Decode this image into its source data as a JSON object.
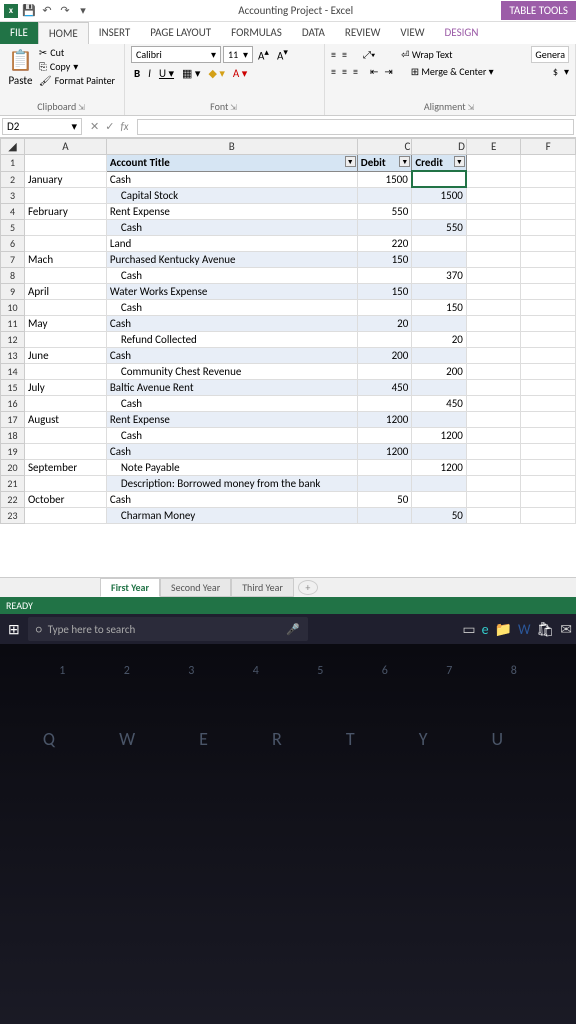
{
  "title": "Accounting Project - Excel",
  "table_tools": "TABLE TOOLS",
  "tabs": {
    "file": "FILE",
    "home": "HOME",
    "insert": "INSERT",
    "pagelayout": "PAGE LAYOUT",
    "formulas": "FORMULAS",
    "data": "DATA",
    "review": "REVIEW",
    "view": "VIEW",
    "design": "DESIGN"
  },
  "clipboard": {
    "paste": "Paste",
    "cut": "Cut",
    "copy": "Copy",
    "format_painter": "Format Painter",
    "label": "Clipboard"
  },
  "font": {
    "name": "Calibri",
    "size": "11",
    "label": "Font"
  },
  "alignment": {
    "wrap": "Wrap Text",
    "merge": "Merge & Center",
    "genera": "Genera",
    "dollar": "$",
    "label": "Alignment"
  },
  "namebox": "D2",
  "fx": "",
  "columns": [
    "A",
    "B",
    "C",
    "D",
    "E",
    "F"
  ],
  "header_row": {
    "b": "Account Title",
    "c": "Debit",
    "d": "Credit"
  },
  "rows": [
    {
      "n": "2",
      "a": "January",
      "b": "Cash",
      "c": "1500",
      "d": "",
      "band": "odd",
      "ind": 0
    },
    {
      "n": "3",
      "a": "",
      "b": "Capital Stock",
      "c": "",
      "d": "1500",
      "band": "even",
      "ind": 1
    },
    {
      "n": "4",
      "a": "February",
      "b": "Rent Expense",
      "c": "550",
      "d": "",
      "band": "odd",
      "ind": 0
    },
    {
      "n": "5",
      "a": "",
      "b": "Cash",
      "c": "",
      "d": "550",
      "band": "even",
      "ind": 1
    },
    {
      "n": "6",
      "a": "",
      "b": "Land",
      "c": "220",
      "d": "",
      "band": "odd",
      "ind": 0
    },
    {
      "n": "7",
      "a": "Mach",
      "b": "Purchased Kentucky Avenue",
      "c": "150",
      "d": "",
      "band": "even",
      "ind": 0
    },
    {
      "n": "8",
      "a": "",
      "b": "Cash",
      "c": "",
      "d": "370",
      "band": "odd",
      "ind": 1
    },
    {
      "n": "9",
      "a": "April",
      "b": "Water Works Expense",
      "c": "150",
      "d": "",
      "band": "even",
      "ind": 0
    },
    {
      "n": "10",
      "a": "",
      "b": "Cash",
      "c": "",
      "d": "150",
      "band": "odd",
      "ind": 1
    },
    {
      "n": "11",
      "a": "May",
      "b": "Cash",
      "c": "20",
      "d": "",
      "band": "even",
      "ind": 0
    },
    {
      "n": "12",
      "a": "",
      "b": "Refund Collected",
      "c": "",
      "d": "20",
      "band": "odd",
      "ind": 1
    },
    {
      "n": "13",
      "a": "June",
      "b": "Cash",
      "c": "200",
      "d": "",
      "band": "even",
      "ind": 0
    },
    {
      "n": "14",
      "a": "",
      "b": "Community Chest Revenue",
      "c": "",
      "d": "200",
      "band": "odd",
      "ind": 1
    },
    {
      "n": "15",
      "a": "July",
      "b": "Baltic Avenue Rent",
      "c": "450",
      "d": "",
      "band": "even",
      "ind": 0
    },
    {
      "n": "16",
      "a": "",
      "b": "Cash",
      "c": "",
      "d": "450",
      "band": "odd",
      "ind": 1
    },
    {
      "n": "17",
      "a": "August",
      "b": "Rent Expense",
      "c": "1200",
      "d": "",
      "band": "even",
      "ind": 0
    },
    {
      "n": "18",
      "a": "",
      "b": "Cash",
      "c": "",
      "d": "1200",
      "band": "odd",
      "ind": 1
    },
    {
      "n": "19",
      "a": "",
      "b": "Cash",
      "c": "1200",
      "d": "",
      "band": "even",
      "ind": 0
    },
    {
      "n": "20",
      "a": "September",
      "b": "Note Payable",
      "c": "",
      "d": "1200",
      "band": "odd",
      "ind": 1
    },
    {
      "n": "21",
      "a": "",
      "b": "Description: Borrowed money from the bank",
      "c": "",
      "d": "",
      "band": "even",
      "ind": 1
    },
    {
      "n": "22",
      "a": "October",
      "b": "Cash",
      "c": "50",
      "d": "",
      "band": "odd",
      "ind": 0
    },
    {
      "n": "23",
      "a": "",
      "b": "Charman Money",
      "c": "",
      "d": "50",
      "band": "even",
      "ind": 1
    }
  ],
  "sheets": {
    "first": "First Year",
    "second": "Second Year",
    "third": "Third Year"
  },
  "status": "READY",
  "taskbar": {
    "search_placeholder": "Type here to search"
  }
}
